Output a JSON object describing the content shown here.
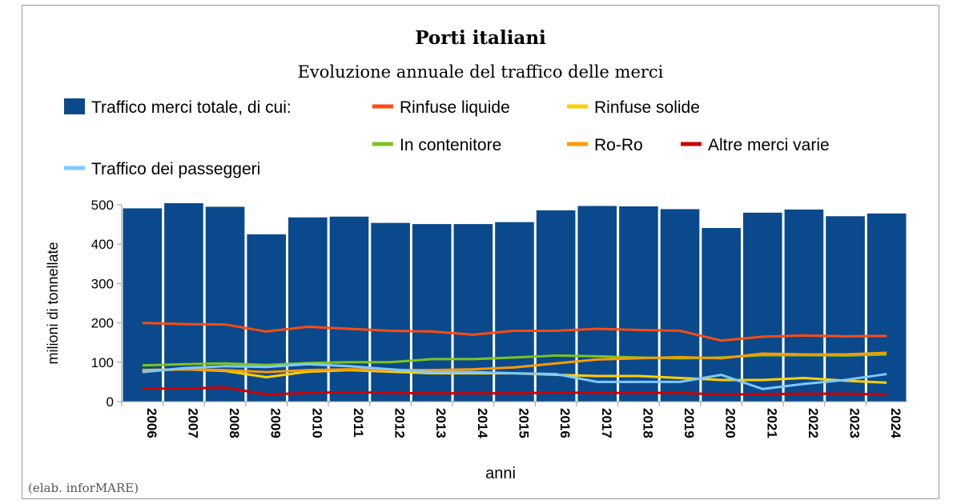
{
  "chart_data": {
    "type": "bar+line",
    "title": "Porti italiani",
    "subtitle": "Evoluzione annuale del traffico delle merci",
    "xlabel": "anni",
    "ylabel": "milioni di tonnellate",
    "ylim": [
      0,
      500
    ],
    "yticks": [
      0,
      100,
      200,
      300,
      400,
      500
    ],
    "grid": false,
    "legend_position": "top",
    "categories": [
      "2006",
      "2007",
      "2008",
      "2009",
      "2010",
      "2011",
      "2012",
      "2013",
      "2014",
      "2015",
      "2016",
      "2017",
      "2018",
      "2019",
      "2020",
      "2021",
      "2022",
      "2023",
      "2024"
    ],
    "bars": {
      "name": "Traffico merci totale, di cui:",
      "color": "#0a4a8c",
      "values": [
        491,
        505,
        495,
        425,
        468,
        470,
        454,
        451,
        451,
        456,
        486,
        497,
        496,
        489,
        441,
        480,
        488,
        471,
        478
      ]
    },
    "series": [
      {
        "name": "Rinfuse liquide",
        "color": "#ff4b10",
        "values": [
          200,
          197,
          196,
          178,
          190,
          185,
          180,
          178,
          170,
          180,
          180,
          185,
          182,
          180,
          155,
          165,
          168,
          166,
          167
        ]
      },
      {
        "name": "Rinfuse solide",
        "color": "#ffd000",
        "values": [
          80,
          82,
          78,
          62,
          76,
          80,
          76,
          72,
          72,
          72,
          68,
          65,
          65,
          60,
          55,
          55,
          60,
          53,
          48
        ]
      },
      {
        "name": "In contenitore",
        "color": "#80c31c",
        "values": [
          92,
          95,
          97,
          93,
          98,
          100,
          100,
          108,
          108,
          112,
          117,
          115,
          112,
          110,
          112,
          118,
          118,
          117,
          120
        ]
      },
      {
        "name": "Ro-Ro",
        "color": "#ff9a00",
        "values": [
          78,
          82,
          80,
          75,
          80,
          82,
          80,
          80,
          82,
          87,
          97,
          107,
          110,
          113,
          110,
          122,
          120,
          120,
          124
        ]
      },
      {
        "name": "Altre merci varie",
        "color": "#cc0000",
        "values": [
          33,
          33,
          36,
          18,
          22,
          24,
          22,
          21,
          21,
          21,
          23,
          22,
          22,
          22,
          18,
          19,
          20,
          20,
          18
        ]
      },
      {
        "name": "Traffico dei passeggeri",
        "color": "#7ec8ff",
        "values": [
          75,
          85,
          90,
          88,
          95,
          90,
          82,
          75,
          75,
          72,
          70,
          50,
          50,
          50,
          68,
          32,
          45,
          55,
          70
        ]
      }
    ],
    "source_note": "(elab. inforMARE)"
  }
}
